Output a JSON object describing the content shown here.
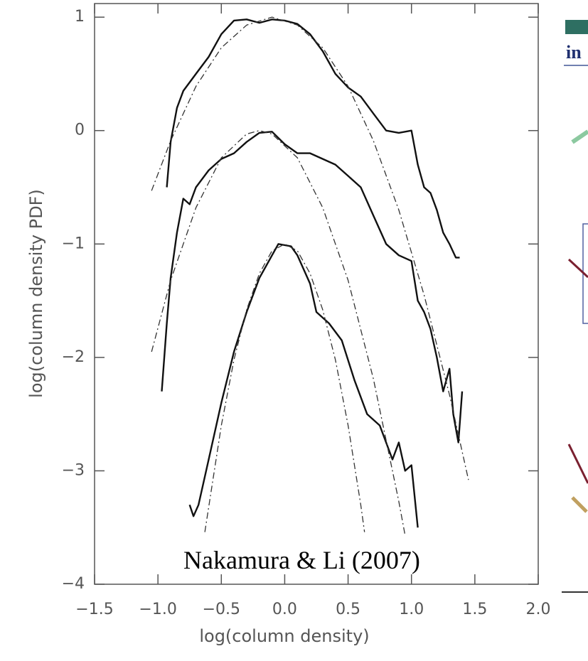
{
  "chart_data": {
    "type": "line",
    "xlabel": "log(column density)",
    "ylabel": "log(column density PDF)",
    "annotation": "Nakamura & Li (2007)",
    "xlim": [
      -1.5,
      2.0
    ],
    "ylim": [
      -4,
      1.12
    ],
    "xticks": [
      {
        "value": -1.5,
        "label": "−1.5"
      },
      {
        "value": -1.0,
        "label": "−1.0"
      },
      {
        "value": -0.5,
        "label": "−0.5"
      },
      {
        "value": 0,
        "label": "0.0"
      },
      0.5,
      {
        "value": 1.0,
        "label": "1.0"
      },
      1.5,
      {
        "value": 2.0,
        "label": "2.0"
      }
    ],
    "yticks": [
      {
        "value": -4,
        "label": "−4"
      },
      {
        "value": -3,
        "label": "−3"
      },
      {
        "value": -2,
        "label": "−2"
      },
      {
        "value": -1,
        "label": "−1"
      },
      0,
      1
    ],
    "series": [
      {
        "color": "#111111",
        "dash": "solid",
        "x": [
          -0.93,
          -0.9,
          -0.85,
          -0.8,
          -0.7,
          -0.6,
          -0.5,
          -0.4,
          -0.3,
          -0.2,
          -0.1,
          0.0,
          0.1,
          0.2,
          0.3,
          0.4,
          0.5,
          0.6,
          0.7,
          0.8,
          0.9,
          1.0,
          1.05,
          1.1,
          1.15,
          1.2,
          1.25,
          1.3,
          1.35,
          1.38
        ],
        "values": [
          -0.5,
          -0.1,
          0.2,
          0.35,
          0.5,
          0.65,
          0.85,
          0.97,
          0.98,
          0.95,
          0.98,
          0.97,
          0.94,
          0.85,
          0.7,
          0.5,
          0.38,
          0.3,
          0.15,
          0.0,
          -0.02,
          0.0,
          -0.3,
          -0.5,
          -0.55,
          -0.7,
          -0.9,
          -1.0,
          -1.12,
          -1.12
        ]
      },
      {
        "color": "#111111",
        "dash": "solid",
        "x": [
          -0.97,
          -0.93,
          -0.9,
          -0.85,
          -0.8,
          -0.75,
          -0.7,
          -0.6,
          -0.5,
          -0.4,
          -0.3,
          -0.2,
          -0.1,
          0.0,
          0.1,
          0.2,
          0.3,
          0.4,
          0.5,
          0.6,
          0.7,
          0.8,
          0.9,
          1.0,
          1.05,
          1.1,
          1.15,
          1.2,
          1.25,
          1.3,
          1.33,
          1.37,
          1.4
        ],
        "values": [
          -2.3,
          -1.7,
          -1.3,
          -0.9,
          -0.6,
          -0.65,
          -0.5,
          -0.35,
          -0.25,
          -0.2,
          -0.1,
          -0.02,
          -0.01,
          -0.12,
          -0.2,
          -0.2,
          -0.25,
          -0.3,
          -0.4,
          -0.5,
          -0.75,
          -1.0,
          -1.1,
          -1.15,
          -1.5,
          -1.6,
          -1.75,
          -2.0,
          -2.3,
          -2.1,
          -2.5,
          -2.75,
          -2.3
        ]
      },
      {
        "color": "#111111",
        "dash": "solid",
        "x": [
          -0.75,
          -0.72,
          -0.68,
          -0.6,
          -0.5,
          -0.4,
          -0.3,
          -0.2,
          -0.1,
          -0.05,
          0.05,
          0.1,
          0.2,
          0.25,
          0.35,
          0.45,
          0.55,
          0.65,
          0.75,
          0.85,
          0.9,
          0.95,
          1.0,
          1.05
        ],
        "values": [
          -3.3,
          -3.4,
          -3.3,
          -2.9,
          -2.4,
          -1.95,
          -1.6,
          -1.3,
          -1.1,
          -1.0,
          -1.02,
          -1.1,
          -1.35,
          -1.6,
          -1.7,
          -1.85,
          -2.2,
          -2.5,
          -2.6,
          -2.9,
          -2.75,
          -3.0,
          -2.95,
          -3.5
        ]
      },
      {
        "color": "#333333",
        "dash": "dash-dot",
        "x": [
          -1.05,
          -0.9,
          -0.7,
          -0.5,
          -0.3,
          -0.1,
          0.1,
          0.3,
          0.5,
          0.7,
          0.9,
          1.1,
          1.3,
          1.45
        ],
        "values": [
          -0.53,
          -0.09,
          0.39,
          0.73,
          0.93,
          1.0,
          0.93,
          0.73,
          0.39,
          -0.09,
          -0.7,
          -1.45,
          -2.33,
          -3.08
        ]
      },
      {
        "color": "#333333",
        "dash": "dash-dot",
        "x": [
          -1.05,
          -0.9,
          -0.7,
          -0.5,
          -0.3,
          -0.2,
          -0.1,
          0.1,
          0.3,
          0.5,
          0.7,
          0.9,
          0.95
        ],
        "values": [
          -1.95,
          -1.32,
          -0.68,
          -0.24,
          -0.03,
          0.0,
          -0.03,
          -0.24,
          -0.68,
          -1.32,
          -2.19,
          -3.27,
          -3.57
        ]
      },
      {
        "color": "#333333",
        "dash": "dash-dot",
        "x": [
          -0.63,
          -0.5,
          -0.4,
          -0.3,
          -0.2,
          -0.1,
          0.0,
          0.1,
          0.2,
          0.3,
          0.4,
          0.5,
          0.6,
          0.63
        ],
        "values": [
          -3.54,
          -2.6,
          -2.02,
          -1.58,
          -1.26,
          -1.06,
          -1.0,
          -1.06,
          -1.26,
          -1.58,
          -2.02,
          -2.6,
          -3.3,
          -3.54
        ]
      }
    ]
  },
  "cropped_text": "in"
}
